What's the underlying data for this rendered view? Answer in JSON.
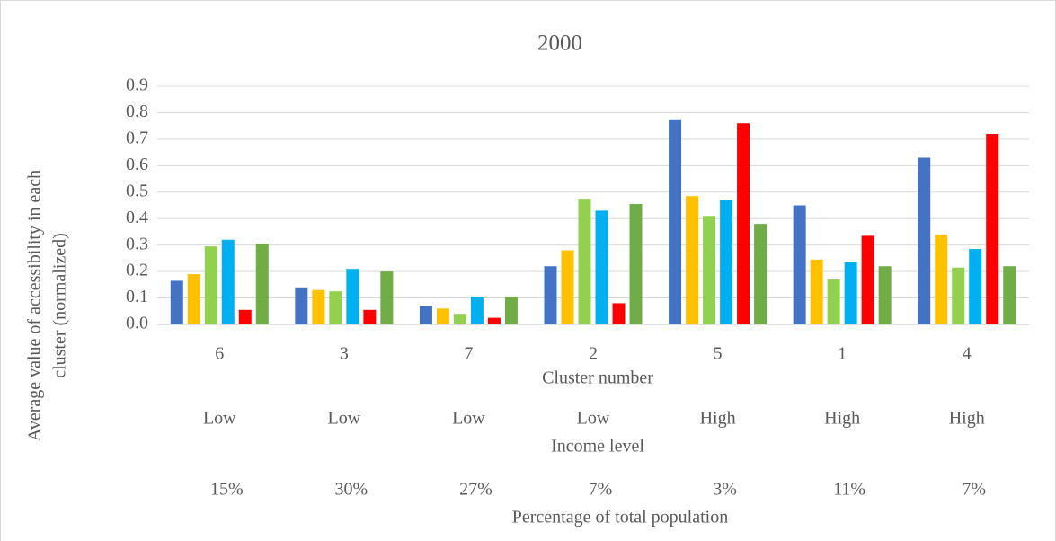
{
  "chart_data": {
    "type": "bar",
    "title": "2000",
    "y_label_lines": [
      "Average value of accessibility in each",
      "cluster (normalized)"
    ],
    "x_label": "Cluster number",
    "categories": [
      "6",
      "3",
      "7",
      "2",
      "5",
      "1",
      "4"
    ],
    "income_label": "Income level",
    "income_levels": [
      "Low",
      "Low",
      "Low",
      "Low",
      "High",
      "High",
      "High"
    ],
    "population_label": "Percentage of total population",
    "population_shares": [
      "15%",
      "30%",
      "27%",
      "7%",
      "3%",
      "11%",
      "7%"
    ],
    "series": [
      {
        "color": "#4472c4",
        "values": [
          0.165,
          0.14,
          0.07,
          0.22,
          0.775,
          0.45,
          0.63
        ]
      },
      {
        "color": "#ffc000",
        "values": [
          0.19,
          0.13,
          0.06,
          0.28,
          0.485,
          0.245,
          0.34
        ]
      },
      {
        "color": "#92d050",
        "values": [
          0.295,
          0.125,
          0.04,
          0.475,
          0.41,
          0.17,
          0.215
        ]
      },
      {
        "color": "#00b0f0",
        "values": [
          0.32,
          0.21,
          0.105,
          0.43,
          0.47,
          0.235,
          0.285
        ]
      },
      {
        "color": "#ff0000",
        "values": [
          0.055,
          0.055,
          0.025,
          0.08,
          0.76,
          0.335,
          0.72
        ]
      },
      {
        "color": "#70ad47",
        "values": [
          0.305,
          0.2,
          0.105,
          0.455,
          0.38,
          0.22,
          0.22
        ]
      }
    ],
    "ylim": [
      0,
      0.9
    ],
    "yticks": [
      {
        "value": 0,
        "label": "0.0"
      },
      0.1,
      0.2,
      0.3,
      0.4,
      0.5,
      0.6,
      0.7,
      0.8,
      0.9
    ],
    "grid": true
  }
}
